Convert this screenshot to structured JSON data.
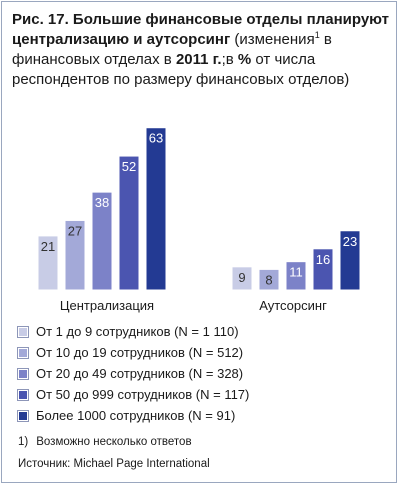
{
  "figure": {
    "title_bold": "Рис. 17. Большие финансовые отделы планируют централизацию и аутсорсинг",
    "title_rest_1": " (изменения",
    "title_sup": "1",
    "title_rest_2": " в финансовых отделах в ",
    "title_year": "2011 г.",
    "title_rest_3": ";в ",
    "title_pct": "%",
    "title_rest_4": " от числа респондентов по размеру финансовых отделов)"
  },
  "chart_data": {
    "type": "bar",
    "categories": [
      "Централизация",
      "Аутсорсинг"
    ],
    "series": [
      {
        "name": "От 1 до 9 сотрудников (N = 1 110)",
        "values": [
          21,
          9
        ],
        "color": "#c8cce6"
      },
      {
        "name": "От 10 до 19 сотрудников (N = 512)",
        "values": [
          27,
          8
        ],
        "color": "#a3a9d8"
      },
      {
        "name": "От 20 до 49 сотрудников (N = 328)",
        "values": [
          38,
          11
        ],
        "color": "#7c82c8"
      },
      {
        "name": "От 50 до 999 сотрудников (N = 117)",
        "values": [
          52,
          16
        ],
        "color": "#4b55b0"
      },
      {
        "name": "Более 1000 сотрудников (N = 91)",
        "values": [
          63,
          23
        ],
        "color": "#233a93"
      }
    ],
    "ylim": [
      0,
      66
    ],
    "legend_position": "bottom"
  },
  "footnote": {
    "number": "1)",
    "text": "Возможно несколько ответов"
  },
  "source": "Источник: Michael Page International"
}
